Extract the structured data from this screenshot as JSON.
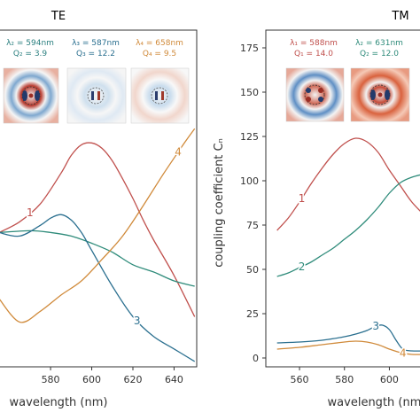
{
  "chart_data": [
    {
      "type": "line",
      "title": "TE",
      "xlabel": "wavelength (nm)",
      "ylabel": "",
      "xlim": [
        555,
        651
      ],
      "ylim": [
        -3,
        185
      ],
      "x_ticks": [
        "580",
        "600",
        "620",
        "640"
      ],
      "y_ticks": [],
      "grid": false,
      "modes": [
        {
          "line1": "λ₂ = 594nm",
          "line2": "Q₂ = 3.9",
          "color": "#2a7f7f"
        },
        {
          "line1": "λ₃ = 587nm",
          "line2": "Q₃ = 12.2",
          "color": "#2a6f8f"
        },
        {
          "line1": "λ₄ = 658nm",
          "line2": "Q₄ = 9.5",
          "color": "#d08a3a"
        }
      ],
      "series": [
        {
          "label": "1",
          "color": "#c0504d",
          "x": [
            555,
            565,
            575,
            585,
            590,
            595,
            600,
            605,
            610,
            615,
            620,
            625,
            630,
            640,
            650
          ],
          "y": [
            72,
            78,
            88,
            105,
            115,
            121,
            122,
            119,
            112,
            102,
            91,
            79,
            68,
            48,
            25
          ]
        },
        {
          "label": "2",
          "color": "#2e8b7a",
          "x": [
            555,
            570,
            580,
            590,
            600,
            610,
            620,
            630,
            640,
            650
          ],
          "y": [
            72,
            73,
            72,
            70,
            66,
            61,
            54,
            50,
            45,
            42
          ]
        },
        {
          "label": "3",
          "color": "#2a6f8f",
          "x": [
            555,
            565,
            575,
            580,
            585,
            590,
            595,
            600,
            610,
            620,
            630,
            640,
            650
          ],
          "y": [
            72,
            70,
            76,
            80,
            82,
            79,
            72,
            62,
            42,
            25,
            14,
            7,
            0
          ]
        },
        {
          "label": "4",
          "color": "#d08a3a",
          "x": [
            555,
            565,
            575,
            585,
            595,
            605,
            615,
            625,
            635,
            645,
            650
          ],
          "y": [
            35,
            22,
            28,
            37,
            45,
            57,
            70,
            87,
            105,
            122,
            130
          ]
        }
      ]
    },
    {
      "type": "line",
      "title": "TM",
      "xlabel": "wavelength (nm)",
      "ylabel": "coupling coefficient Cₙ",
      "xlim": [
        545,
        616
      ],
      "ylim": [
        -5,
        185
      ],
      "x_ticks": [
        "560",
        "580",
        "600"
      ],
      "y_ticks": [
        "0",
        "25",
        "50",
        "75",
        "100",
        "125",
        "150",
        "175"
      ],
      "grid": false,
      "modes": [
        {
          "line1": "λ₁ = 588nm",
          "line2": "Q₁ = 14.0",
          "color": "#c0504d"
        },
        {
          "line1": "λ₂ = 631nm",
          "line2": "Q₂ = 12.0",
          "color": "#2e8b7a"
        }
      ],
      "series": [
        {
          "label": "1",
          "color": "#c0504d",
          "x": [
            550,
            555,
            560,
            565,
            570,
            575,
            580,
            585,
            590,
            595,
            600,
            605,
            610,
            616
          ],
          "y": [
            72,
            79,
            88,
            98,
            107,
            115,
            121,
            124,
            122,
            116,
            106,
            97,
            88,
            80
          ]
        },
        {
          "label": "2",
          "color": "#2e8b7a",
          "x": [
            550,
            555,
            560,
            565,
            570,
            575,
            580,
            585,
            590,
            595,
            600,
            605,
            610,
            616
          ],
          "y": [
            46,
            48,
            51,
            54,
            58,
            62,
            67,
            72,
            78,
            85,
            93,
            99,
            102,
            104
          ]
        },
        {
          "label": "3",
          "color": "#2a6f8f",
          "x": [
            550,
            560,
            570,
            580,
            585,
            590,
            594,
            597,
            600,
            603,
            606,
            610,
            616
          ],
          "y": [
            8.5,
            9,
            10,
            12,
            13.5,
            15.5,
            18,
            18.5,
            16,
            10,
            5,
            4,
            4
          ]
        },
        {
          "label": "4",
          "color": "#d08a3a",
          "x": [
            550,
            560,
            570,
            580,
            585,
            590,
            595,
            600,
            605,
            610,
            616
          ],
          "y": [
            5,
            6,
            7.5,
            9,
            9.5,
            9,
            7.5,
            5,
            3,
            2,
            2
          ]
        }
      ]
    }
  ]
}
